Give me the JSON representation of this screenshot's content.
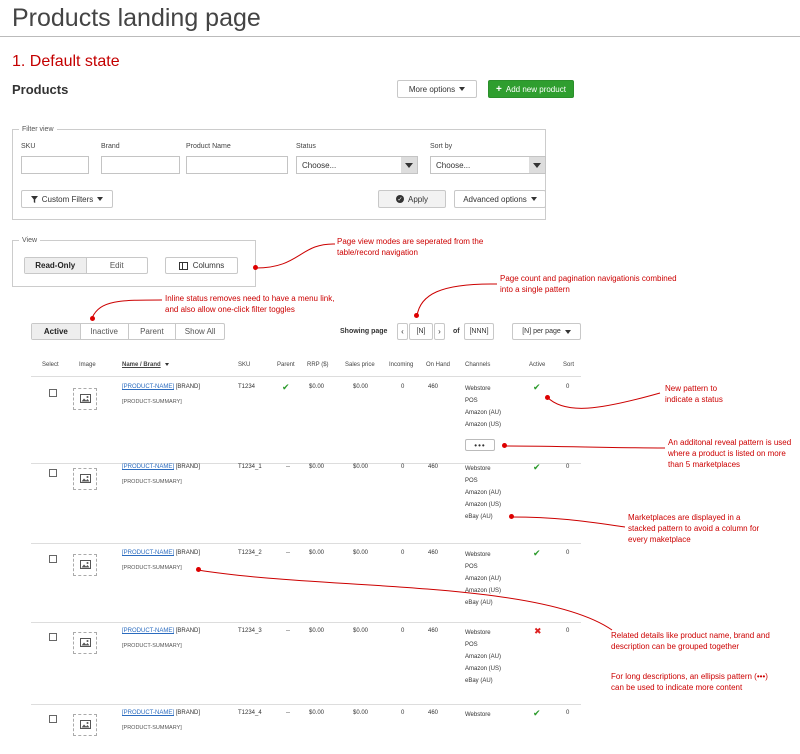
{
  "page_title": "Products landing page",
  "state_heading": "1. Default state",
  "products_heading": "Products",
  "buttons": {
    "more_options": "More options",
    "add_new_product": "Add new product",
    "custom_filters": "Custom Filters",
    "apply": "Apply",
    "advanced_options": "Advanced options",
    "columns": "Columns"
  },
  "filter_view": {
    "legend": "Filter view",
    "sku_label": "SKU",
    "brand_label": "Brand",
    "product_name_label": "Product Name",
    "status_label": "Status",
    "status_value": "Choose...",
    "sort_label": "Sort by",
    "sort_value": "Choose..."
  },
  "view": {
    "legend": "View",
    "modes": [
      "Read-Only",
      "Edit"
    ]
  },
  "status_tabs": [
    "Active",
    "Inactive",
    "Parent",
    "Show All"
  ],
  "pagination": {
    "label": "Showing page",
    "current": "[N]",
    "of": "of",
    "total": "[NNN]",
    "per_page_value": "[N]",
    "per_page_label": "per page"
  },
  "table": {
    "headers": {
      "select": "Select",
      "image": "Image",
      "name_brand": "Name / Brand",
      "sku": "SKU",
      "parent": "Parent",
      "rrp": "RRP ($)",
      "sales_price": "Sales price",
      "incoming": "Incoming",
      "on_hand": "On Hand",
      "channels": "Channels",
      "active": "Active",
      "sort": "Sort"
    },
    "rows": [
      {
        "name": "[PRODUCT-NAME]",
        "brand": "[BRAND]",
        "summary": "[PRODUCT-SUMMARY]",
        "sku": "T1234",
        "parent": "",
        "rrp": "$0.00",
        "sales_price": "$0.00",
        "incoming": "0",
        "on_hand": "460",
        "channels": [
          "Webstore",
          "POS",
          "Amazon (AU)",
          "Amazon (US)"
        ],
        "more": "•••",
        "active": "yes",
        "sort": "0"
      },
      {
        "name": "[PRODUCT-NAME]",
        "brand": "[BRAND]",
        "summary": "[PRODUCT-SUMMARY]",
        "sku": "T1234_1",
        "parent": "--",
        "rrp": "$0.00",
        "sales_price": "$0.00",
        "incoming": "0",
        "on_hand": "460",
        "channels": [
          "Webstore",
          "POS",
          "Amazon (AU)",
          "Amazon (US)",
          "eBay (AU)"
        ],
        "active": "yes",
        "sort": "0"
      },
      {
        "name": "[PRODUCT-NAME]",
        "brand": "[BRAND]",
        "summary": "[PRODUCT-SUMMARY]",
        "sku": "T1234_2",
        "parent": "--",
        "rrp": "$0.00",
        "sales_price": "$0.00",
        "incoming": "0",
        "on_hand": "460",
        "channels": [
          "Webstore",
          "POS",
          "Amazon (AU)",
          "Amazon (US)",
          "eBay (AU)"
        ],
        "active": "yes",
        "sort": "0"
      },
      {
        "name": "[PRODUCT-NAME]",
        "brand": "[BRAND]",
        "summary": "[PRODUCT-SUMMARY]",
        "sku": "T1234_3",
        "parent": "--",
        "rrp": "$0.00",
        "sales_price": "$0.00",
        "incoming": "0",
        "on_hand": "460",
        "channels": [
          "Webstore",
          "POS",
          "Amazon (AU)",
          "Amazon (US)",
          "eBay (AU)"
        ],
        "active": "no",
        "sort": "0"
      },
      {
        "name": "[PRODUCT-NAME]",
        "brand": "[BRAND]",
        "summary": "[PRODUCT-SUMMARY]",
        "sku": "T1234_4",
        "parent": "--",
        "rrp": "$0.00",
        "sales_price": "$0.00",
        "incoming": "0",
        "on_hand": "460",
        "channels": [
          "Webstore"
        ],
        "active": "yes",
        "sort": "0"
      }
    ]
  },
  "annotations": {
    "view_modes": "Page view modes are seperated from the table/record navigation",
    "pagination": "Page count and pagination navigationis combined into a single pattern",
    "inline_status": "Inline status removes need to have a menu link, and also allow one-click filter toggles",
    "new_status": "New pattern to indicate a status",
    "reveal": "An additonal reveal pattern is used where a product is listed on more than 5 marketplaces",
    "stacked": "Marketplaces are displayed in a stacked pattern to avoid a column for every maketplace",
    "grouped": "Related details like product name, brand and description can be grouped together",
    "ellipsis": "For long descriptions, an ellipsis pattern (•••) can be used to indicate more content"
  },
  "colors": {
    "accent_red": "#cc0000",
    "green": "#2f9e2f"
  }
}
